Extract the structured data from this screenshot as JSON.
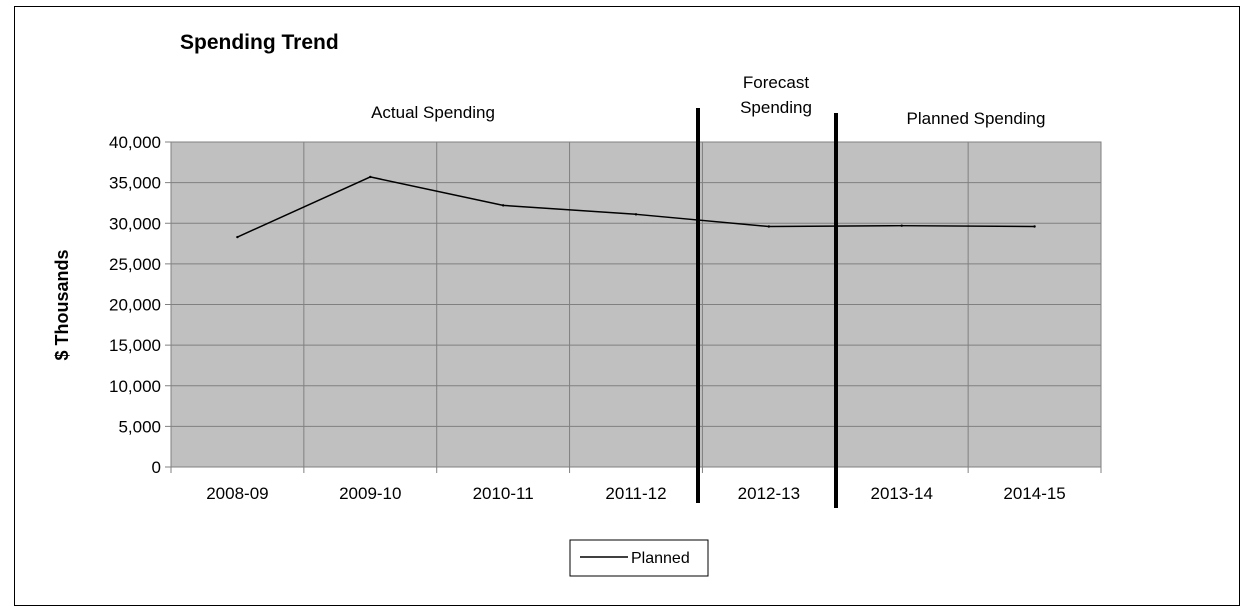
{
  "chart_data": {
    "type": "line",
    "title": "Spending Trend",
    "xlabel": "",
    "ylabel": "$ Thousands",
    "categories": [
      "2008-09",
      "2009-10",
      "2010-11",
      "2011-12",
      "2012-13",
      "2013-14",
      "2014-15"
    ],
    "series": [
      {
        "name": "Planned",
        "values": [
          28300,
          35700,
          32200,
          31100,
          29600,
          29700,
          29600
        ],
        "color": "#000000"
      }
    ],
    "ylim": [
      0,
      40000
    ],
    "yticks": [
      "0",
      "5,000",
      "10,000",
      "15,000",
      "20,000",
      "25,000",
      "30,000",
      "35,000",
      "40,000"
    ],
    "grid": true,
    "plot_background": "#c0c0c0",
    "legend_position": "bottom",
    "annotations": {
      "actual": "Actual Spending",
      "forecast_line1": "Forecast",
      "forecast_line2": "Spending",
      "planned": "Planned Spending"
    }
  }
}
